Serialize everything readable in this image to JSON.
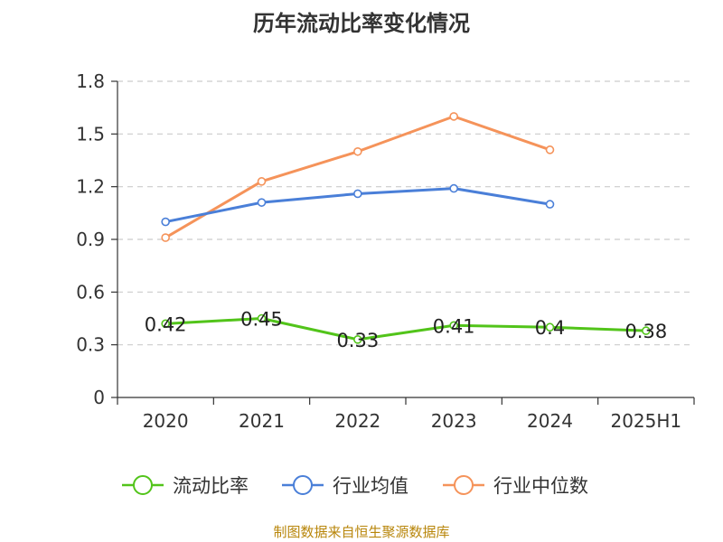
{
  "chart_data": {
    "type": "line",
    "title": "历年流动比率变化情况",
    "categories": [
      "2020",
      "2021",
      "2022",
      "2023",
      "2024",
      "2025H1"
    ],
    "y_ticks": [
      "0",
      "0.3",
      "0.6",
      "0.9",
      "1.2",
      "1.5",
      "1.8"
    ],
    "ylim": [
      0,
      1.8
    ],
    "grid": true,
    "legend_position": "bottom",
    "series": [
      {
        "name": "流动比率",
        "color": "#52c41a",
        "values": [
          0.42,
          0.45,
          0.33,
          0.41,
          0.4,
          0.38
        ],
        "labels": [
          "0.42",
          "0.45",
          "0.33",
          "0.41",
          "0.4",
          "0.38"
        ]
      },
      {
        "name": "行业均值",
        "color": "#4a7fd8",
        "values": [
          1.0,
          1.11,
          1.16,
          1.19,
          1.1,
          null
        ]
      },
      {
        "name": "行业中位数",
        "color": "#f5935a",
        "values": [
          0.91,
          1.23,
          1.4,
          1.6,
          1.41,
          null
        ]
      }
    ]
  },
  "source": "制图数据来自恒生聚源数据库"
}
